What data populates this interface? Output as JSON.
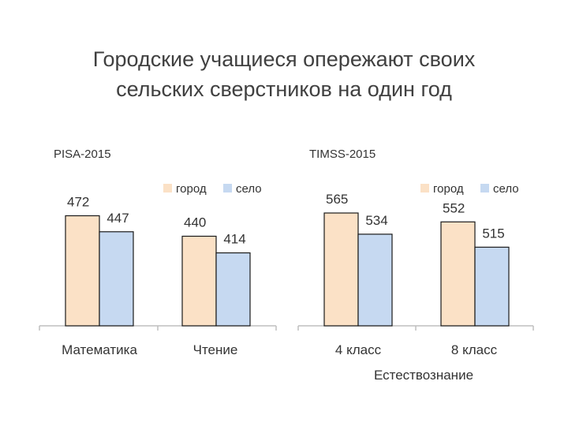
{
  "slide": {
    "title_line1": "Городские учащиеся опережают своих",
    "title_line2": "сельских сверстников на один год"
  },
  "colors": {
    "city_fill": "#fbe1c6",
    "village_fill": "#c6d9f1",
    "bar_stroke": "#1a1a1a",
    "axis": "#bfbfbf"
  },
  "chart_data": [
    {
      "type": "bar",
      "title": "PISA-2015",
      "categories": [
        "Математика",
        "Чтение"
      ],
      "series": [
        {
          "name": "город",
          "values": [
            472,
            440
          ]
        },
        {
          "name": "село",
          "values": [
            447,
            414
          ]
        }
      ],
      "xlabel": "",
      "ylabel": "",
      "ylim": [
        300,
        480
      ],
      "legend": "top-right",
      "grid": false
    },
    {
      "type": "bar",
      "title": "TIMSS-2015",
      "categories": [
        "4 класс",
        "8 класс"
      ],
      "series": [
        {
          "name": "город",
          "values": [
            565,
            552
          ]
        },
        {
          "name": "село",
          "values": [
            534,
            515
          ]
        }
      ],
      "xlabel": "Естествознание",
      "ylabel": "",
      "ylim": [
        400,
        565
      ],
      "legend": "top-right",
      "grid": false
    }
  ]
}
